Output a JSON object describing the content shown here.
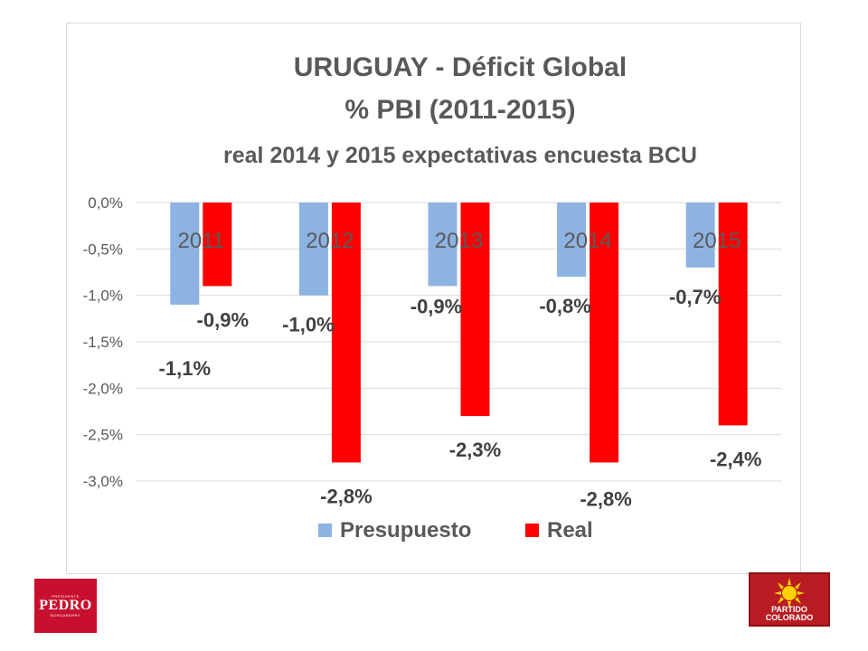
{
  "chart_data": {
    "type": "bar",
    "title_lines": [
      "URUGUAY - Déficit Global",
      "% PBI (2011-2015)",
      "real 2014 y 2015 expectativas encuesta BCU"
    ],
    "categories": [
      "2011",
      "2012",
      "2013",
      "2014",
      "2015"
    ],
    "series": [
      {
        "name": "Presupuesto",
        "color": "#8db3e2",
        "values": [
          -1.1,
          -1.0,
          -0.9,
          -0.8,
          -0.7
        ],
        "labels": [
          "-1,1%",
          "-1,0%",
          "-0,9%",
          "-0,8%",
          "-0,7%"
        ]
      },
      {
        "name": "Real",
        "color": "#ff0000",
        "values": [
          -0.9,
          -2.8,
          -2.3,
          -2.8,
          -2.4
        ],
        "labels": [
          "-0,9%",
          "-2,8%",
          "-2,3%",
          "-2,8%",
          "-2,4%"
        ]
      }
    ],
    "y_ticks": [
      {
        "value": 0.0,
        "label": "0,0%"
      },
      {
        "value": -0.5,
        "label": "-0,5%"
      },
      {
        "value": -1.0,
        "label": "-1,0%"
      },
      {
        "value": -1.5,
        "label": "-1,5%"
      },
      {
        "value": -2.0,
        "label": "-2,0%"
      },
      {
        "value": -2.5,
        "label": "-2,5%"
      },
      {
        "value": -3.0,
        "label": "-3,0%"
      }
    ],
    "ylim": [
      -3.0,
      0.0
    ],
    "grid": true,
    "legend": "bottom"
  },
  "logos": {
    "left": {
      "top_text": "PRESIDENTE",
      "main_text": "PEDRO",
      "bottom_text": "BORDABERRY"
    },
    "right": {
      "line1": "PARTIDO",
      "line2": "COLORADO"
    }
  }
}
